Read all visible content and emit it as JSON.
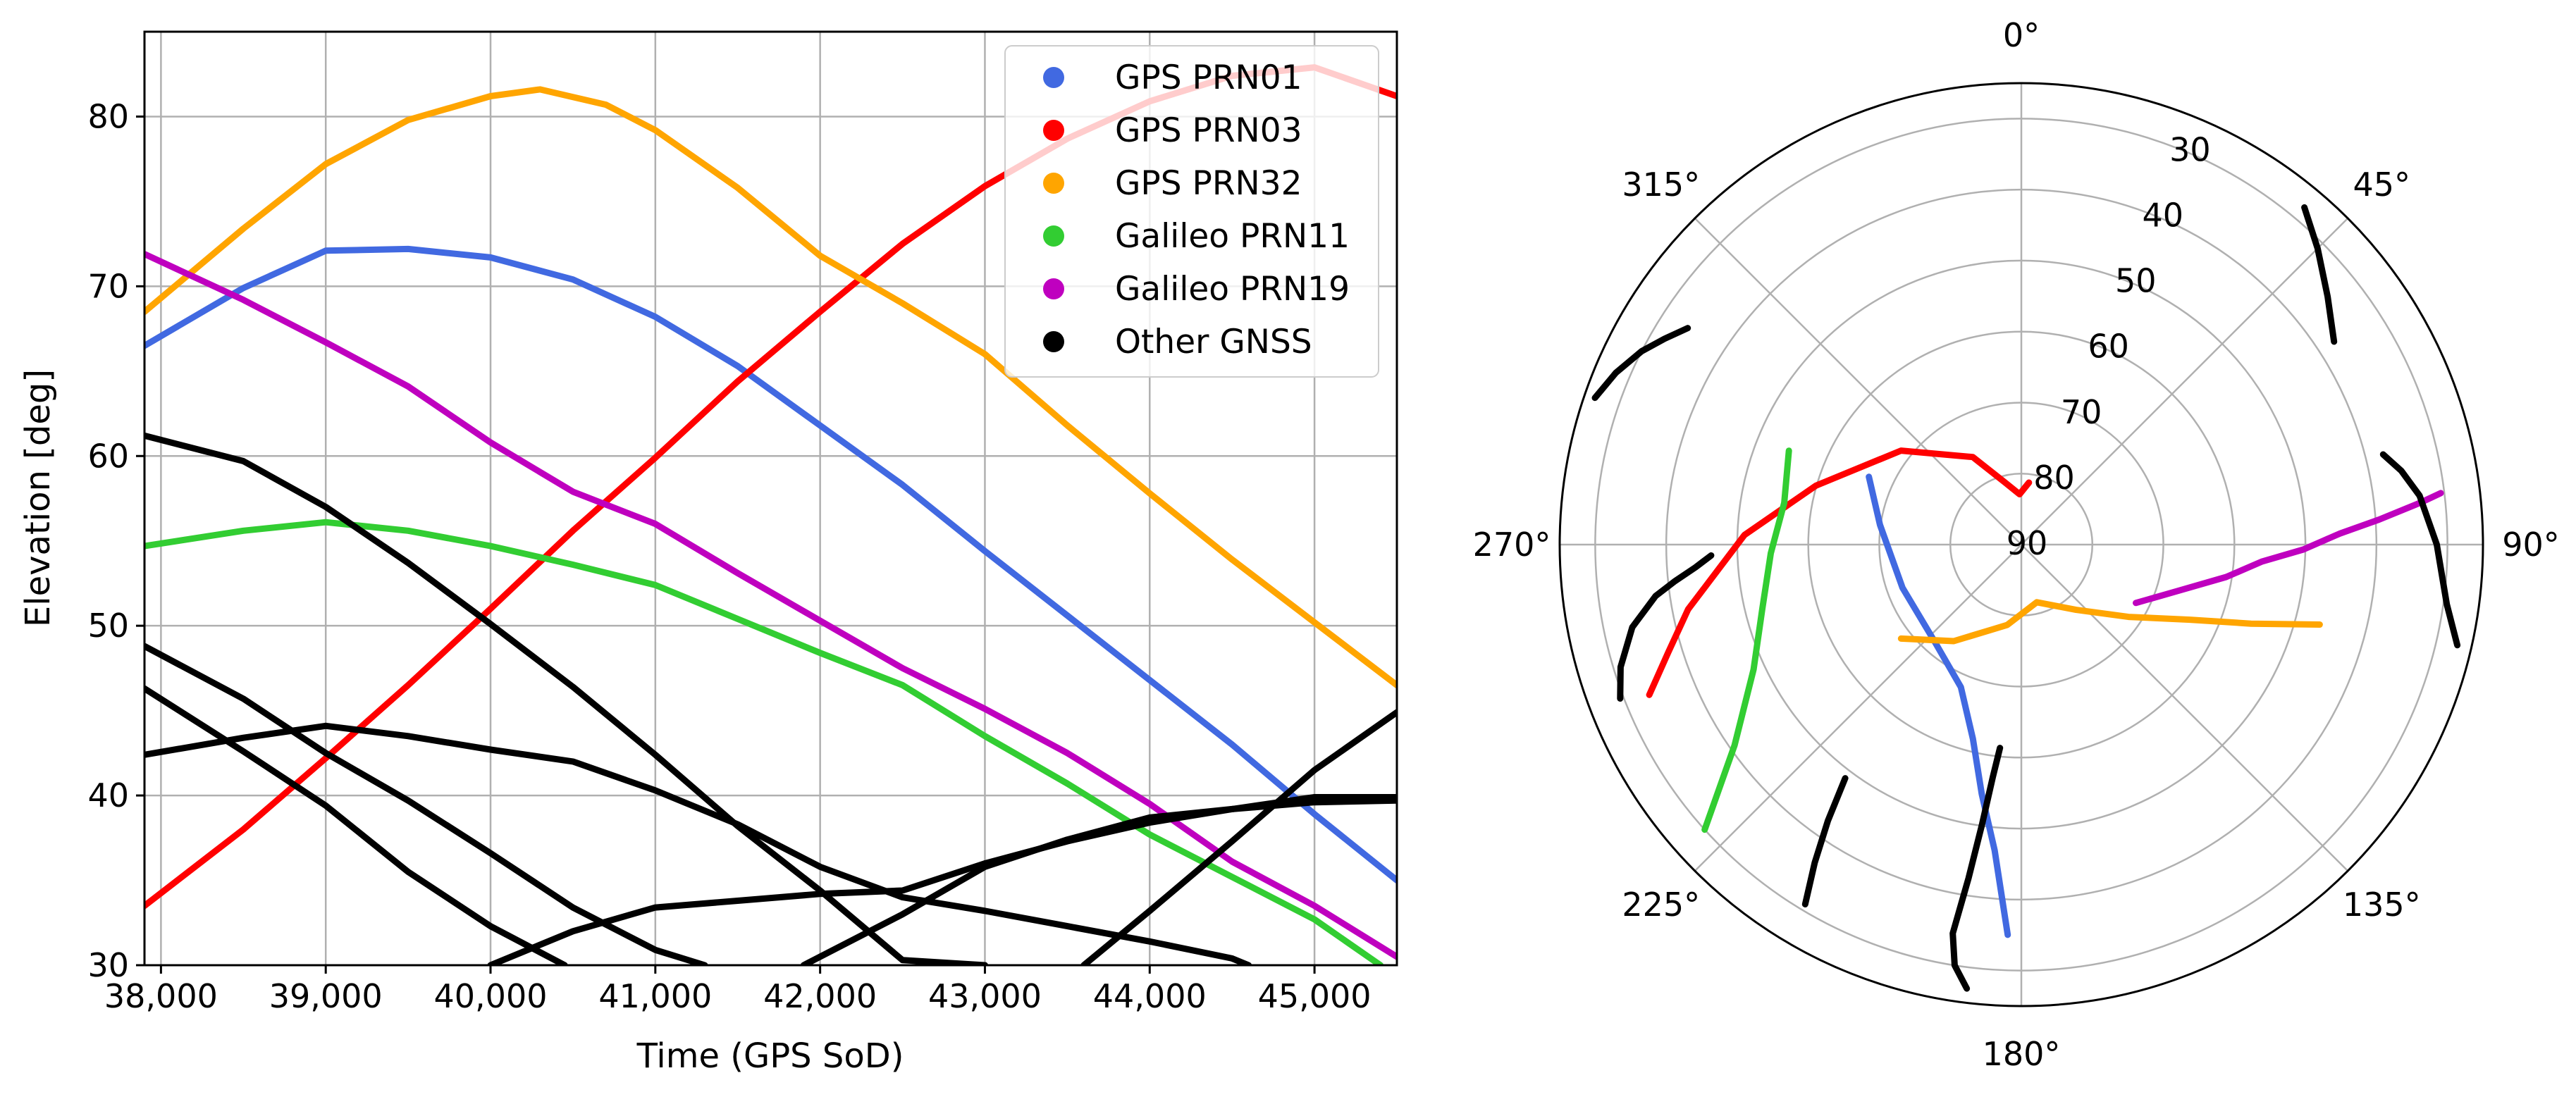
{
  "chart_data": [
    {
      "type": "line",
      "xlabel": "Time (GPS SoD)",
      "ylabel": "Elevation [deg]",
      "xlim": [
        37900,
        45500
      ],
      "ylim": [
        30,
        85
      ],
      "x_ticks": [
        38000,
        39000,
        40000,
        41000,
        42000,
        43000,
        44000,
        45000
      ],
      "x_tick_labels": [
        "38,000",
        "39,000",
        "40,000",
        "41,000",
        "42,000",
        "43,000",
        "44,000",
        "45,000"
      ],
      "y_ticks": [
        30,
        40,
        50,
        60,
        70,
        80
      ],
      "y_tick_labels": [
        "30",
        "40",
        "50",
        "60",
        "70",
        "80"
      ],
      "grid": true,
      "legend_position": "top-right",
      "legend": [
        {
          "label": "GPS PRN01",
          "color": "#4169e1"
        },
        {
          "label": "GPS PRN03",
          "color": "#ff0000"
        },
        {
          "label": "GPS PRN32",
          "color": "#ffa500"
        },
        {
          "label": "Galileo PRN11",
          "color": "#32cd32"
        },
        {
          "label": "Galileo PRN19",
          "color": "#bf00bf"
        },
        {
          "label": "Other GNSS",
          "color": "#000000"
        }
      ],
      "series": [
        {
          "name": "GPS PRN01",
          "color": "#4169e1",
          "x": [
            37900,
            38500,
            39000,
            39500,
            40000,
            40500,
            41000,
            41500,
            42000,
            42500,
            43000,
            43500,
            44000,
            44500,
            45000,
            45500
          ],
          "values": [
            66.5,
            69.9,
            72.1,
            72.2,
            71.7,
            70.4,
            68.2,
            65.3,
            61.8,
            58.3,
            54.4,
            50.6,
            46.8,
            43.0,
            38.9,
            35.0
          ]
        },
        {
          "name": "GPS PRN03",
          "color": "#ff0000",
          "x": [
            37900,
            38500,
            39000,
            39500,
            40000,
            40500,
            41000,
            41500,
            42000,
            42500,
            43000,
            43500,
            44000,
            44500,
            45000,
            45500
          ],
          "values": [
            33.5,
            38.0,
            42.2,
            46.5,
            51.0,
            55.6,
            59.9,
            64.4,
            68.5,
            72.5,
            75.9,
            78.7,
            80.9,
            82.4,
            82.9,
            81.2
          ]
        },
        {
          "name": "GPS PRN32",
          "color": "#ffa500",
          "x": [
            37900,
            38500,
            39000,
            39500,
            40000,
            40300,
            40700,
            41000,
            41500,
            42000,
            42500,
            43000,
            43500,
            44000,
            44500,
            45000,
            45500
          ],
          "values": [
            68.5,
            73.4,
            77.2,
            79.8,
            81.2,
            81.6,
            80.7,
            79.2,
            75.8,
            71.8,
            69.0,
            66.0,
            61.8,
            57.8,
            53.9,
            50.2,
            46.5
          ]
        },
        {
          "name": "Galileo PRN11",
          "color": "#32cd32",
          "x": [
            37900,
            38500,
            39000,
            39500,
            40000,
            40500,
            41000,
            41500,
            42000,
            42500,
            43000,
            43500,
            44000,
            44500,
            45000,
            45400
          ],
          "values": [
            54.7,
            55.6,
            56.1,
            55.6,
            54.7,
            53.6,
            52.4,
            50.4,
            48.4,
            46.5,
            43.5,
            40.7,
            37.7,
            35.2,
            32.7,
            30.0
          ]
        },
        {
          "name": "Galileo PRN19",
          "color": "#bf00bf",
          "x": [
            37900,
            38500,
            39000,
            39500,
            40000,
            40500,
            41000,
            41500,
            42000,
            42500,
            43000,
            43500,
            44000,
            44500,
            45000,
            45500
          ],
          "values": [
            71.9,
            69.2,
            66.7,
            64.1,
            60.8,
            57.9,
            56.0,
            53.1,
            50.3,
            47.5,
            45.1,
            42.5,
            39.5,
            36.1,
            33.5,
            30.5
          ]
        },
        {
          "name": "Other GNSS 1",
          "color": "#000000",
          "x": [
            37900,
            38500,
            39000,
            39500,
            40000,
            40500,
            41000,
            41500,
            42000,
            42500,
            43000
          ],
          "values": [
            61.2,
            59.7,
            57.0,
            53.7,
            50.1,
            46.4,
            42.4,
            38.2,
            34.4,
            30.3,
            30.0
          ]
        },
        {
          "name": "Other GNSS 2",
          "color": "#000000",
          "x": [
            37900,
            38500,
            39000,
            39500,
            40000,
            40500,
            41000,
            41300
          ],
          "values": [
            48.8,
            45.7,
            42.5,
            39.7,
            36.6,
            33.4,
            30.9,
            30.0
          ]
        },
        {
          "name": "Other GNSS 3",
          "color": "#000000",
          "x": [
            37900,
            38500,
            39000,
            39500,
            40000,
            40450
          ],
          "values": [
            46.3,
            42.6,
            39.4,
            35.5,
            32.3,
            30.0
          ]
        },
        {
          "name": "Other GNSS 4",
          "color": "#000000",
          "x": [
            37900,
            38500,
            39000,
            39500,
            40000,
            40500,
            41000,
            41500,
            42000,
            42500,
            43000,
            43500,
            44000,
            44500,
            44600
          ],
          "values": [
            42.4,
            43.4,
            44.1,
            43.5,
            42.7,
            42.0,
            40.3,
            38.3,
            35.8,
            34.0,
            33.2,
            32.3,
            31.4,
            30.4,
            30.0
          ]
        },
        {
          "name": "Other GNSS 5",
          "color": "#000000",
          "x": [
            40000,
            40500,
            41000,
            41500,
            42000,
            42500,
            43000,
            43500,
            44000,
            44500,
            45000,
            45500
          ],
          "values": [
            30.0,
            32.0,
            33.4,
            33.8,
            34.2,
            34.4,
            36.0,
            37.3,
            38.4,
            39.2,
            39.9,
            39.9
          ]
        },
        {
          "name": "Other GNSS 6",
          "color": "#000000",
          "x": [
            41900,
            42500,
            43000,
            43500,
            44000,
            44500,
            45000,
            45500
          ],
          "values": [
            30.0,
            33.0,
            35.8,
            37.4,
            38.7,
            39.2,
            39.6,
            39.7
          ]
        },
        {
          "name": "Other GNSS 7",
          "color": "#000000",
          "x": [
            43600,
            44000,
            44500,
            45000,
            45500
          ],
          "values": [
            30.0,
            33.2,
            37.3,
            41.5,
            44.9
          ]
        }
      ]
    },
    {
      "type": "polar-skyplot",
      "theta_labels": [
        "0°",
        "45°",
        "90°",
        "135°",
        "180°",
        "225°",
        "270°",
        "315°"
      ],
      "theta_directions_deg": [
        0,
        45,
        90,
        135,
        180,
        225,
        270,
        315
      ],
      "r_ticks": [
        30,
        40,
        50,
        60,
        70,
        80,
        90
      ],
      "r_tick_labels": [
        "30",
        "40",
        "50",
        "60",
        "70",
        "80",
        "90"
      ],
      "r_range_elevation_deg": [
        90,
        25
      ],
      "series": [
        {
          "name": "GPS PRN01",
          "color": "#4169e1",
          "azimuth_deg": [
            294,
            278,
            250,
            222,
            203,
            194,
            189,
            185,
            182
          ],
          "elevation_deg": [
            66.5,
            69.9,
            72.2,
            71.7,
            68.2,
            61.8,
            54.4,
            46.8,
            35.0
          ]
        },
        {
          "name": "GPS PRN03",
          "color": "#ff0000",
          "azimuth_deg": [
            248,
            253,
            259,
            272,
            286,
            308,
            331,
            345,
            358,
            7
          ],
          "elevation_deg": [
            33.5,
            38.0,
            42.2,
            51.0,
            59.9,
            68.5,
            75.9,
            80.9,
            82.9,
            81.2
          ]
        },
        {
          "name": "GPS PRN32",
          "color": "#ffa500",
          "azimuth_deg": [
            232,
            215,
            190,
            165,
            140,
            124,
            114,
            109,
            105
          ],
          "elevation_deg": [
            68.5,
            73.4,
            78.5,
            81.6,
            78.0,
            71.8,
            64.0,
            55.8,
            46.5
          ]
        },
        {
          "name": "Galileo PRN11",
          "color": "#32cd32",
          "azimuth_deg": [
            292,
            280,
            268,
            256,
            245,
            235,
            228
          ],
          "elevation_deg": [
            54.7,
            56.1,
            54.7,
            52.4,
            48.4,
            40.7,
            30.0
          ]
        },
        {
          "name": "Galileo PRN19",
          "color": "#bf00bf",
          "azimuth_deg": [
            117,
            106,
            99,
            94,
            91,
            88,
            86,
            84,
            83
          ],
          "elevation_deg": [
            71.9,
            66.7,
            60.8,
            56.0,
            50.3,
            45.1,
            39.5,
            33.5,
            30.5
          ]
        },
        {
          "name": "Other GNSS 1",
          "color": "#000000",
          "azimuth_deg": [
            186,
            187,
            188,
            189,
            190,
            189,
            187
          ],
          "elevation_deg": [
            61.2,
            57.0,
            50.1,
            42.4,
            34.4,
            30.0,
            27.0
          ]
        },
        {
          "name": "Other GNSS 2",
          "color": "#000000",
          "azimuth_deg": [
            217,
            215,
            213,
            211
          ],
          "elevation_deg": [
            48.8,
            42.5,
            36.6,
            30.9
          ]
        },
        {
          "name": "Other GNSS 3",
          "color": "#000000",
          "azimuth_deg": [
            268,
            266,
            264,
            262,
            258,
            253,
            249
          ],
          "elevation_deg": [
            46.3,
            44.0,
            41.0,
            38.0,
            34.0,
            31.0,
            29.5
          ]
        },
        {
          "name": "Other GNSS 4",
          "color": "#000000",
          "azimuth_deg": [
            289,
            293,
            297,
            300,
            303
          ],
          "elevation_deg": [
            26.5,
            28.0,
            30.0,
            32.0,
            34.0
          ]
        },
        {
          "name": "Other GNSS 5",
          "color": "#000000",
          "azimuth_deg": [
            40,
            45,
            51,
            57
          ],
          "elevation_deg": [
            28.0,
            31.0,
            34.5,
            37.5
          ]
        },
        {
          "name": "Other GNSS 6",
          "color": "#000000",
          "azimuth_deg": [
            76,
            79,
            83,
            90,
            98,
            103
          ],
          "elevation_deg": [
            37.5,
            35.5,
            33.5,
            31.5,
            29.5,
            27.0
          ]
        }
      ]
    }
  ]
}
